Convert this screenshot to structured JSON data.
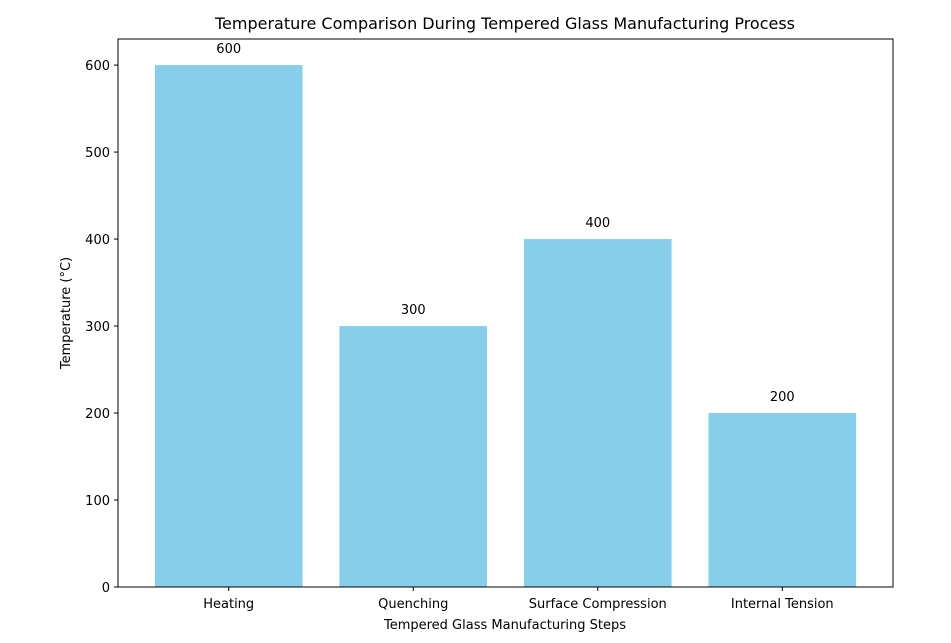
{
  "chart_data": {
    "type": "bar",
    "title": "Temperature Comparison During Tempered Glass Manufacturing Process",
    "xlabel": "Tempered Glass Manufacturing Steps",
    "ylabel": "Temperature (°C)",
    "categories": [
      "Heating",
      "Quenching",
      "Surface Compression",
      "Internal Tension"
    ],
    "values": [
      600,
      300,
      400,
      200
    ],
    "data_labels": [
      "600",
      "300",
      "400",
      "200"
    ],
    "ylim": [
      0,
      630
    ],
    "yticks": [
      0,
      100,
      200,
      300,
      400,
      500,
      600
    ],
    "grid": false,
    "bar_color": "#87CEEB"
  }
}
